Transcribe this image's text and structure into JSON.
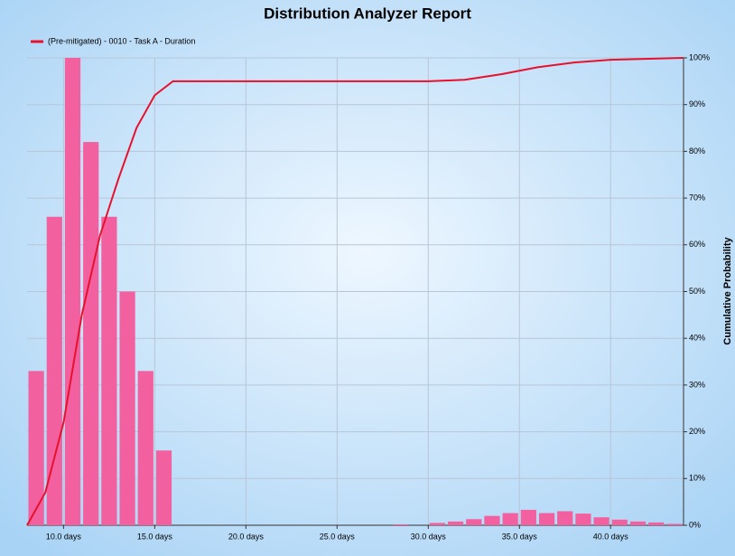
{
  "chart_data": {
    "type": "histogram",
    "title": "Distribution Analyzer Report",
    "bins": [
      8,
      9,
      10,
      11,
      12,
      13,
      14,
      15,
      16,
      17,
      18,
      19,
      20,
      21,
      22,
      23,
      24,
      25,
      26,
      27,
      28,
      29,
      30,
      31,
      32,
      33,
      34,
      35,
      36,
      37,
      38,
      39,
      40,
      41,
      42,
      43,
      44
    ],
    "values": [
      33,
      66,
      100,
      82,
      66,
      50,
      33,
      16,
      0,
      0,
      0,
      0,
      0,
      0,
      0,
      0,
      0,
      0,
      0,
      0,
      0.2,
      0,
      0.5,
      0.8,
      1.3,
      2,
      2.6,
      3.3,
      2.6,
      3,
      2.5,
      1.7,
      1.2,
      0.8,
      0.6,
      0.3
    ],
    "color": "#f2609f",
    "series": [
      {
        "name": "(Pre-mitigated) - 0010 - Task A - Duration",
        "color": "#e8112d",
        "x": [
          8,
          9,
          10,
          11,
          12,
          13,
          14,
          15,
          16,
          30,
          32,
          34,
          36,
          38,
          40,
          44
        ],
        "values": [
          0,
          7,
          22,
          45,
          62,
          74,
          85,
          92,
          95,
          95,
          95.3,
          96.5,
          98,
          99,
          99.6,
          100
        ]
      }
    ],
    "xlim": [
      8,
      44
    ],
    "xticks": [
      {
        "value": 10,
        "label": "10.0 days"
      },
      {
        "value": 15,
        "label": "15.0 days"
      },
      {
        "value": 20,
        "label": "20.0 days"
      },
      {
        "value": 25,
        "label": "25.0 days"
      },
      {
        "value": 30,
        "label": "30.0 days"
      },
      {
        "value": 35,
        "label": "35.0 days"
      },
      {
        "value": 40,
        "label": "40.0 days"
      }
    ],
    "y2label": "Cumulative Probability",
    "y2lim": [
      0,
      100
    ],
    "y2ticks": [
      {
        "value": 0,
        "label": "0%"
      },
      {
        "value": 10,
        "label": "10%"
      },
      {
        "value": 20,
        "label": "20%"
      },
      {
        "value": 30,
        "label": "30%"
      },
      {
        "value": 40,
        "label": "40%"
      },
      {
        "value": 50,
        "label": "50%"
      },
      {
        "value": 60,
        "label": "60%"
      },
      {
        "value": 70,
        "label": "70%"
      },
      {
        "value": 80,
        "label": "80%"
      },
      {
        "value": 90,
        "label": "90%"
      },
      {
        "value": 100,
        "label": "100%"
      }
    ],
    "grid": true,
    "legend": "top-left"
  }
}
